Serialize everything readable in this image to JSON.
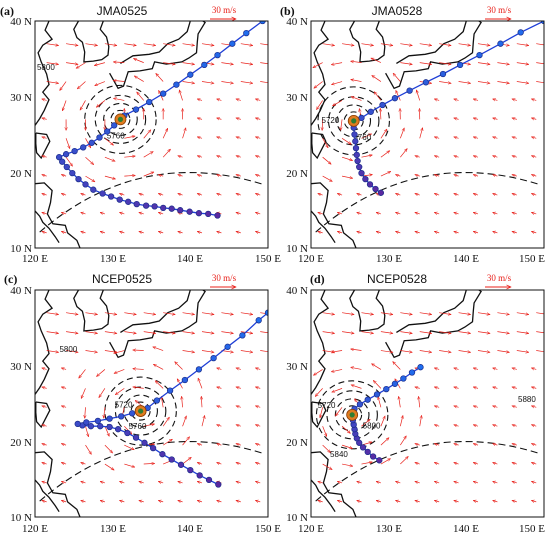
{
  "chart_data": [
    {
      "type": "scatter",
      "panel_label": "(a)",
      "title": "JMA0525",
      "scale_label": "30 m/s",
      "x_ticks": [
        "120 E",
        "130 E",
        "140 E",
        "150 E"
      ],
      "y_ticks": [
        "10 N",
        "20 N",
        "30 N",
        "40 N"
      ],
      "xlim": [
        120,
        150
      ],
      "ylim": [
        10,
        40
      ],
      "center": [
        131,
        27
      ],
      "contour_labels": [
        {
          "text": "5760",
          "lon": 130.4,
          "lat": 24.5
        },
        {
          "text": "5800",
          "lon": 121.4,
          "lat": 33.5
        }
      ],
      "track": [
        [
          143.5,
          14.3
        ],
        [
          142.3,
          14.5
        ],
        [
          141.1,
          14.6
        ],
        [
          139.9,
          14.8
        ],
        [
          138.7,
          15.0
        ],
        [
          137.6,
          15.2
        ],
        [
          136.5,
          15.3
        ],
        [
          135.4,
          15.5
        ],
        [
          134.3,
          15.6
        ],
        [
          133.1,
          15.8
        ],
        [
          132.0,
          16.1
        ],
        [
          130.9,
          16.4
        ],
        [
          129.8,
          16.8
        ],
        [
          128.7,
          17.2
        ],
        [
          127.5,
          17.7
        ],
        [
          126.5,
          18.4
        ],
        [
          125.6,
          19.1
        ],
        [
          124.8,
          19.9
        ],
        [
          124.1,
          20.7
        ],
        [
          123.5,
          21.4
        ],
        [
          123.1,
          22.0
        ],
        [
          124.0,
          22.4
        ],
        [
          125.1,
          22.8
        ],
        [
          126.2,
          23.3
        ],
        [
          127.3,
          23.9
        ],
        [
          128.3,
          24.6
        ],
        [
          129.3,
          25.4
        ],
        [
          130.2,
          26.2
        ],
        [
          131.0,
          27.0
        ],
        [
          131.5,
          27.5
        ],
        [
          133.0,
          28.3
        ],
        [
          134.7,
          29.3
        ],
        [
          136.5,
          30.4
        ],
        [
          138.2,
          31.6
        ],
        [
          140.0,
          32.9
        ],
        [
          141.8,
          34.2
        ],
        [
          143.5,
          35.5
        ],
        [
          145.4,
          37.0
        ],
        [
          147.2,
          38.4
        ],
        [
          149.3,
          40.0
        ]
      ]
    },
    {
      "type": "scatter",
      "panel_label": "(b)",
      "title": "JMA0528",
      "scale_label": "30 m/s",
      "x_ticks": [
        "120 E",
        "130 E",
        "140 E",
        "150 E"
      ],
      "y_ticks": [
        "10 N",
        "20 N",
        "30 N",
        "40 N"
      ],
      "xlim": [
        120,
        150
      ],
      "ylim": [
        10,
        40
      ],
      "center": [
        125.5,
        26.8
      ],
      "contour_labels": [
        {
          "text": "5720",
          "lon": 122.5,
          "lat": 26.5
        },
        {
          "text": "5760",
          "lon": 126.6,
          "lat": 24.3
        }
      ],
      "track": [
        [
          129.0,
          17.3
        ],
        [
          128.3,
          17.8
        ],
        [
          127.6,
          18.4
        ],
        [
          127.0,
          19.1
        ],
        [
          126.5,
          19.9
        ],
        [
          126.2,
          20.7
        ],
        [
          126.0,
          21.5
        ],
        [
          125.9,
          22.3
        ],
        [
          125.8,
          23.2
        ],
        [
          125.7,
          24.1
        ],
        [
          125.6,
          25.0
        ],
        [
          125.5,
          25.9
        ],
        [
          125.5,
          26.8
        ],
        [
          126.5,
          27.2
        ],
        [
          127.7,
          28.0
        ],
        [
          129.2,
          28.9
        ],
        [
          130.8,
          29.8
        ],
        [
          132.7,
          30.8
        ],
        [
          134.8,
          31.9
        ],
        [
          137.0,
          33.0
        ],
        [
          139.2,
          34.2
        ],
        [
          141.7,
          35.5
        ],
        [
          144.4,
          37.0
        ],
        [
          147.0,
          38.5
        ],
        [
          150.0,
          40.0
        ]
      ]
    },
    {
      "type": "scatter",
      "panel_label": "(c)",
      "title": "NCEP0525",
      "scale_label": "30 m/s",
      "x_ticks": [
        "120 E",
        "130 E",
        "140 E",
        "150 E"
      ],
      "y_ticks": [
        "10 N",
        "20 N",
        "30 N",
        "40 N"
      ],
      "xlim": [
        120,
        150
      ],
      "ylim": [
        10,
        40
      ],
      "center": [
        133.6,
        24.0
      ],
      "contour_labels": [
        {
          "text": "5760",
          "lon": 133.2,
          "lat": 21.6
        },
        {
          "text": "5800",
          "lon": 124.3,
          "lat": 31.8
        },
        {
          "text": "5720",
          "lon": 131.4,
          "lat": 24.5
        }
      ],
      "track": [
        [
          143.6,
          14.3
        ],
        [
          142.4,
          14.9
        ],
        [
          141.2,
          15.5
        ],
        [
          140.0,
          16.2
        ],
        [
          138.8,
          16.9
        ],
        [
          137.6,
          17.6
        ],
        [
          136.4,
          18.3
        ],
        [
          135.2,
          19.1
        ],
        [
          134.1,
          19.8
        ],
        [
          133.0,
          20.5
        ],
        [
          131.9,
          21.1
        ],
        [
          130.7,
          21.6
        ],
        [
          129.6,
          21.9
        ],
        [
          128.4,
          22.0
        ],
        [
          127.2,
          22.0
        ],
        [
          126.1,
          22.1
        ],
        [
          125.5,
          22.3
        ],
        [
          126.6,
          22.5
        ],
        [
          128.1,
          22.7
        ],
        [
          129.6,
          23.0
        ],
        [
          131.1,
          23.3
        ],
        [
          132.5,
          23.7
        ],
        [
          133.6,
          24.0
        ],
        [
          134.5,
          24.4
        ],
        [
          135.7,
          25.4
        ],
        [
          137.4,
          26.7
        ],
        [
          139.3,
          28.1
        ],
        [
          141.1,
          29.5
        ],
        [
          143.0,
          31.0
        ],
        [
          144.8,
          32.5
        ],
        [
          146.7,
          34.0
        ],
        [
          148.8,
          36.0
        ],
        [
          150.0,
          37.0
        ]
      ]
    },
    {
      "type": "scatter",
      "panel_label": "(d)",
      "title": "NCEP0528",
      "scale_label": "30 m/s",
      "x_ticks": [
        "120 E",
        "130 E",
        "140 E",
        "150 E"
      ],
      "y_ticks": [
        "10 N",
        "20 N",
        "30 N",
        "40 N"
      ],
      "xlim": [
        120,
        150
      ],
      "ylim": [
        10,
        40
      ],
      "center": [
        125.3,
        23.5
      ],
      "contour_labels": [
        {
          "text": "5720",
          "lon": 122.0,
          "lat": 24.4
        },
        {
          "text": "5800",
          "lon": 127.8,
          "lat": 21.7
        },
        {
          "text": "5840",
          "lon": 123.6,
          "lat": 17.9
        },
        {
          "text": "5880",
          "lon": 147.8,
          "lat": 25.2
        }
      ],
      "track": [
        [
          128.8,
          17.5
        ],
        [
          128.0,
          18.0
        ],
        [
          127.3,
          18.6
        ],
        [
          126.7,
          19.2
        ],
        [
          126.2,
          19.8
        ],
        [
          125.9,
          20.4
        ],
        [
          125.7,
          21.0
        ],
        [
          125.6,
          21.6
        ],
        [
          125.5,
          22.2
        ],
        [
          125.4,
          22.8
        ],
        [
          125.3,
          23.5
        ],
        [
          125.6,
          24.3
        ],
        [
          126.3,
          24.9
        ],
        [
          127.3,
          25.5
        ],
        [
          128.5,
          26.2
        ],
        [
          129.7,
          26.9
        ],
        [
          130.8,
          27.6
        ],
        [
          131.9,
          28.3
        ],
        [
          133.0,
          29.1
        ],
        [
          134.1,
          29.8
        ]
      ]
    }
  ]
}
